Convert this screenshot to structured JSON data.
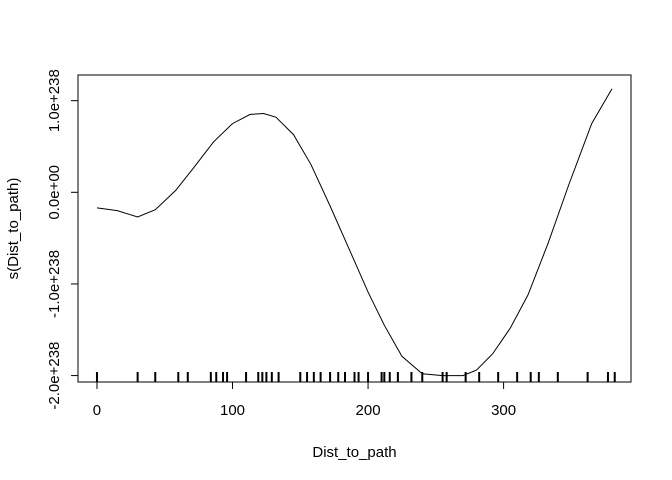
{
  "chart_data": {
    "type": "line",
    "title": "",
    "xlabel": "Dist_to_path",
    "ylabel": "s(Dist_to_path)",
    "xlim": [
      -14,
      394
    ],
    "ylim": [
      -2.07e+238,
      1.28e+238
    ],
    "x_ticks": [
      {
        "value": 0,
        "label": "0"
      },
      {
        "value": 100,
        "label": "100"
      },
      {
        "value": 200,
        "label": "200"
      },
      {
        "value": 300,
        "label": "300"
      }
    ],
    "y_ticks": [
      {
        "value": -2e+238,
        "label": "-2.0e+238"
      },
      {
        "value": -1e+238,
        "label": "-1.0e+238"
      },
      {
        "value": 0,
        "label": "0.0e+00"
      },
      {
        "value": 1e+238,
        "label": "1.0e+238"
      }
    ],
    "series": [
      {
        "x": [
          0,
          15,
          30,
          43,
          58,
          72,
          86,
          100,
          113,
          123,
          132,
          145,
          158,
          172,
          187,
          200,
          212,
          225,
          240,
          255,
          270,
          280,
          292,
          305,
          318,
          333,
          348,
          365,
          380
        ],
        "y": [
          -1.7e+237,
          -2e+237,
          -2.7e+237,
          -1.9e+237,
          2e+236,
          2.8e+237,
          5.5e+237,
          7.5e+237,
          8.5e+237,
          8.6e+237,
          8.2e+237,
          6.3e+237,
          3e+237,
          -1.5e+237,
          -6.5e+237,
          -1.09e+238,
          -1.45e+238,
          -1.79e+238,
          -1.98e+238,
          -2e+238,
          -2e+238,
          -1.94e+238,
          -1.76e+238,
          -1.48e+238,
          -1.12e+238,
          -5.5e+237,
          8e+236,
          7.5e+237,
          1.13e+238
        ]
      }
    ],
    "rug": [
      0,
      30,
      43,
      60,
      67,
      84,
      88,
      93,
      96,
      110,
      119,
      122,
      125,
      129,
      134,
      150,
      155,
      160,
      165,
      172,
      178,
      183,
      190,
      193,
      200,
      210,
      212,
      216,
      222,
      232,
      240,
      255,
      258,
      272,
      282,
      296,
      310,
      320,
      326,
      340,
      362,
      377,
      382
    ],
    "grid": false,
    "legend": "none"
  }
}
